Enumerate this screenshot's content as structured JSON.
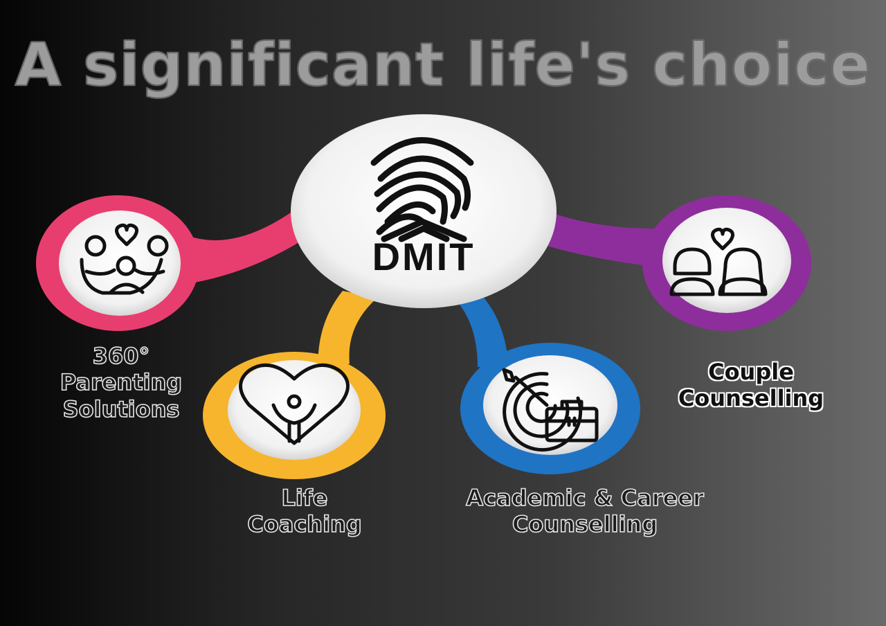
{
  "title": "A significant life's choice",
  "center": {
    "label": "DMIT",
    "icon": "fingerprint-icon"
  },
  "colors": {
    "parenting": "#e83e6f",
    "life": "#f7b52d",
    "career": "#1f74c4",
    "couple": "#8e2e9c"
  },
  "nodes": [
    {
      "lines": [
        "360°",
        "Parenting",
        "Solutions"
      ],
      "icon": "family-hands-icon"
    },
    {
      "lines": [
        "Life",
        "Coaching"
      ],
      "icon": "heart-person-icon"
    },
    {
      "lines": [
        "Academic & Career",
        "Counselling"
      ],
      "icon": "target-briefcase-icon"
    },
    {
      "lines": [
        "Couple",
        "Counselling"
      ],
      "icon": "couple-heart-icon"
    }
  ]
}
